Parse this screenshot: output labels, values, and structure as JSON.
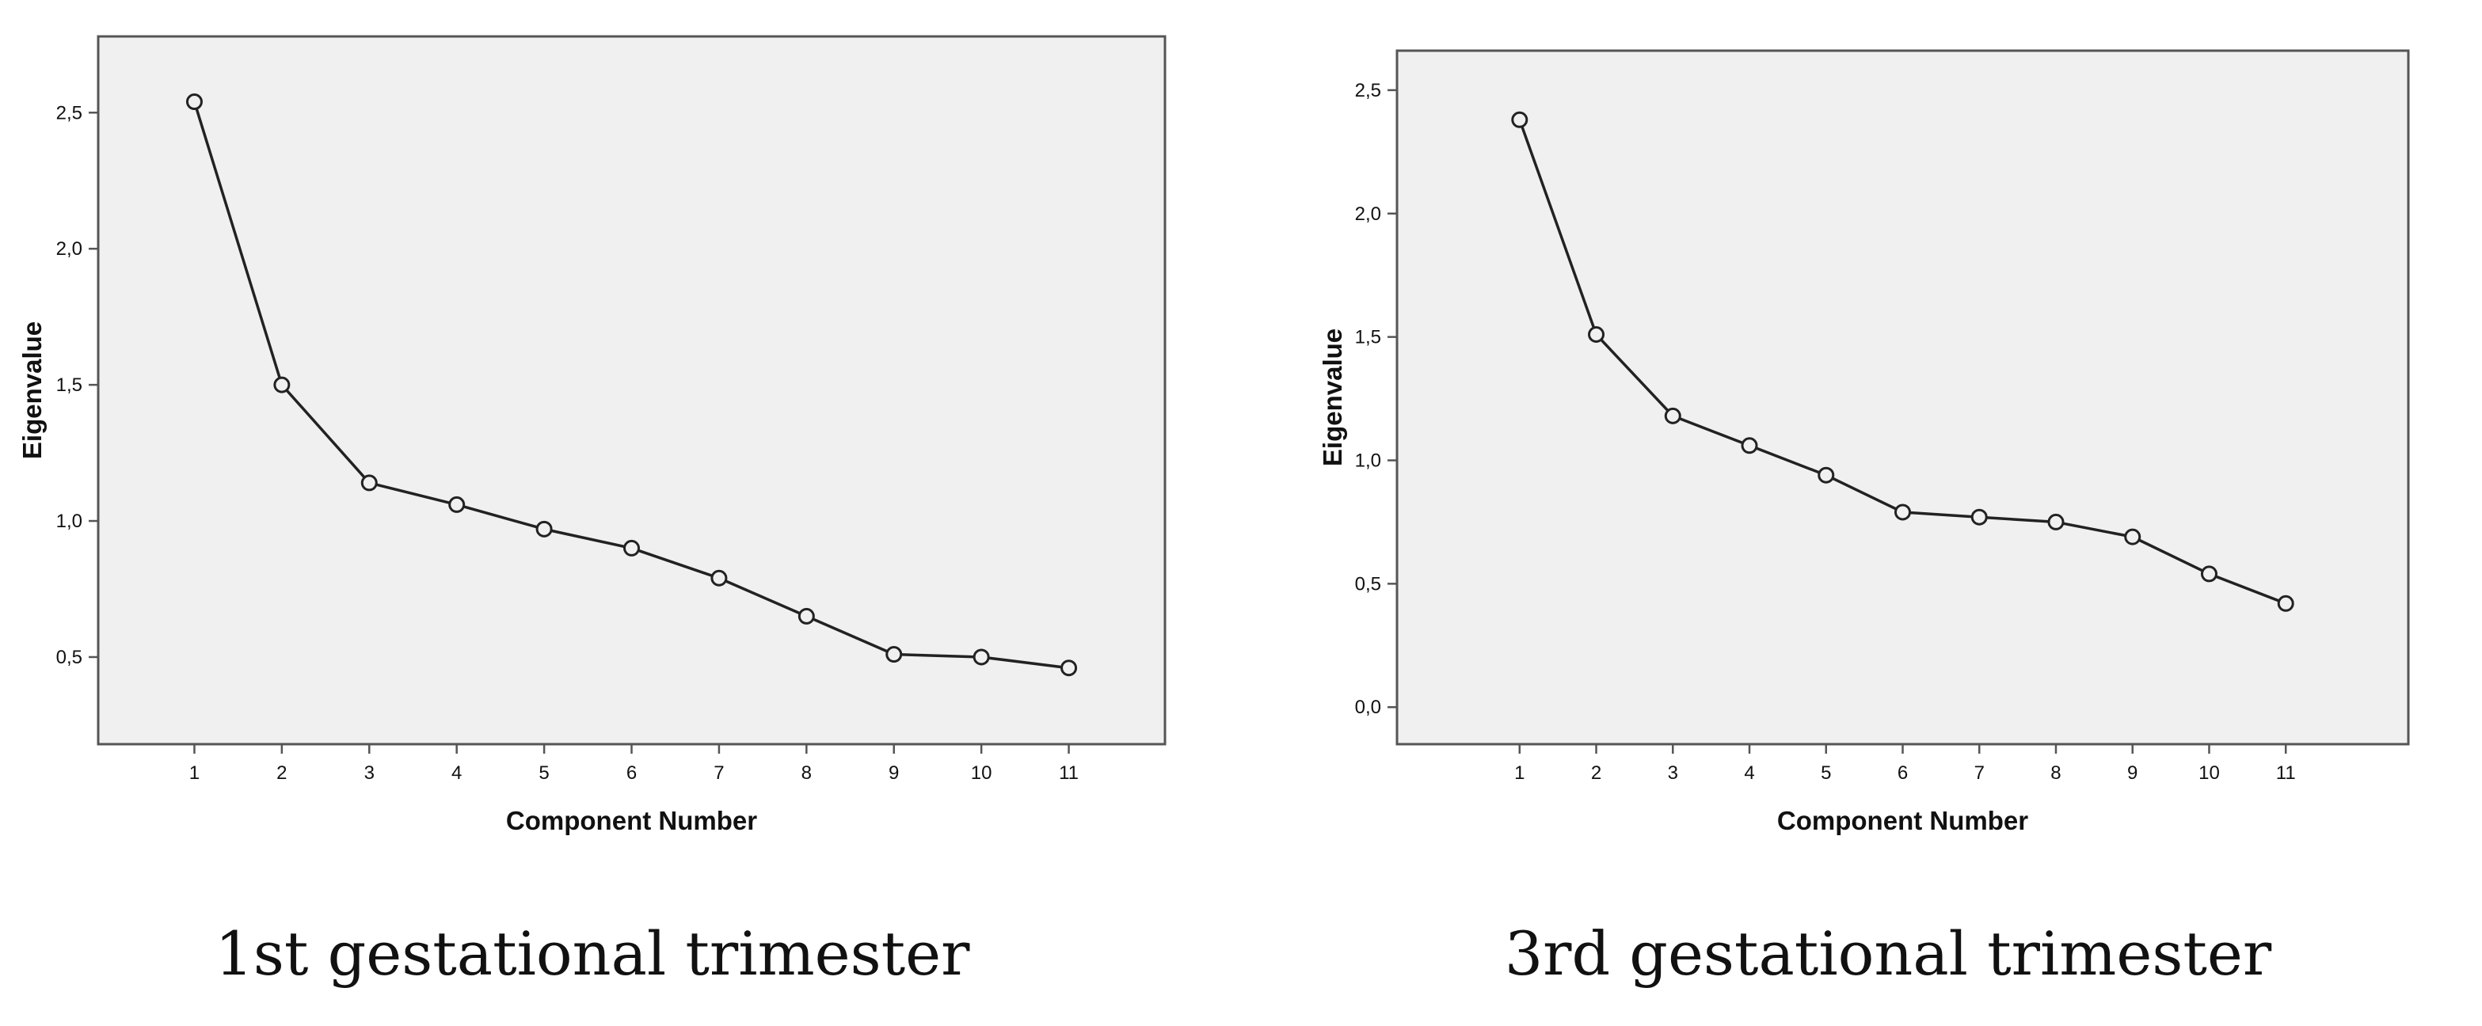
{
  "colors": {
    "plot_background": "#f0f0f0",
    "frame": "#555555",
    "line": "#222222",
    "text": "#111111"
  },
  "captions": {
    "left": "1st gestational trimester",
    "right": "3rd gestational trimester"
  },
  "chart_data": [
    {
      "type": "line",
      "markers": "open-circle",
      "title": "",
      "xlabel": "Component Number",
      "ylabel": "Eigenvalue",
      "x": [
        1,
        2,
        3,
        4,
        5,
        6,
        7,
        8,
        9,
        10,
        11
      ],
      "series": [
        {
          "values": [
            2.54,
            1.5,
            1.14,
            1.06,
            0.97,
            0.9,
            0.79,
            0.65,
            0.51,
            0.5,
            0.46
          ]
        }
      ],
      "xlim": [
        -0.1,
        12.1
      ],
      "ylim": [
        0.18,
        2.78
      ],
      "x_ticks": [
        "1",
        "2",
        "3",
        "4",
        "5",
        "6",
        "7",
        "8",
        "9",
        "10",
        "11"
      ],
      "y_ticks": [
        {
          "value": 0.5,
          "label": "0,5"
        },
        {
          "value": 1.0,
          "label": "1,0"
        },
        {
          "value": 1.5,
          "label": "1,5"
        },
        {
          "value": 2.0,
          "label": "2,0"
        },
        {
          "value": 2.5,
          "label": "2,5"
        }
      ],
      "grid": false
    },
    {
      "type": "line",
      "markers": "open-circle",
      "title": "",
      "xlabel": "Component Number",
      "ylabel": "Eigenvalue",
      "x": [
        1,
        2,
        3,
        4,
        5,
        6,
        7,
        8,
        9,
        10,
        11
      ],
      "series": [
        {
          "values": [
            2.38,
            1.51,
            1.18,
            1.06,
            0.94,
            0.79,
            0.77,
            0.75,
            0.69,
            0.54,
            0.42
          ]
        }
      ],
      "xlim": [
        -0.6,
        12.6
      ],
      "ylim": [
        -0.15,
        2.66
      ],
      "x_ticks": [
        "1",
        "2",
        "3",
        "4",
        "5",
        "6",
        "7",
        "8",
        "9",
        "10",
        "11"
      ],
      "y_ticks": [
        {
          "value": 0.0,
          "label": "0,0"
        },
        {
          "value": 0.5,
          "label": "0,5"
        },
        {
          "value": 1.0,
          "label": "1,0"
        },
        {
          "value": 1.5,
          "label": "1,5"
        },
        {
          "value": 2.0,
          "label": "2,0"
        },
        {
          "value": 2.5,
          "label": "2,5"
        }
      ],
      "grid": false
    }
  ]
}
